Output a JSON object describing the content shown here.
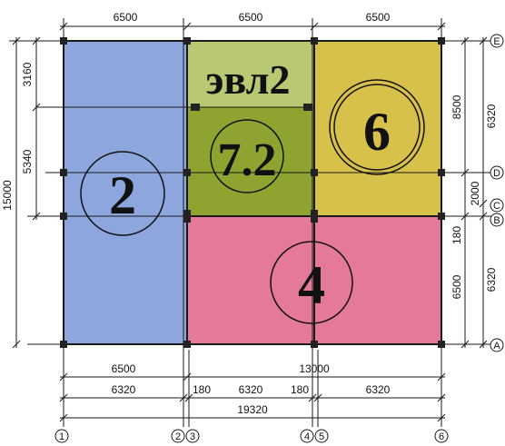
{
  "colors": {
    "zone_blue": "#8EA6DE",
    "zone_pink": "#E47A98",
    "zone_yellow": "#D8C14A",
    "zone_olive_dark": "#8FA430",
    "zone_olive_light": "#B9C873",
    "line": "#1a1a1a"
  },
  "top_dims": [
    "6500",
    "6500",
    "6500"
  ],
  "left_dims": {
    "d3160": "3160",
    "d5340": "5340",
    "d15000": "15000"
  },
  "right_dims": {
    "d8500": "8500",
    "d2000": "2000",
    "d180": "180",
    "d6500": "6500",
    "d6320a": "6320",
    "d6320b": "6320"
  },
  "bottom_dims": {
    "row1": {
      "a": "6500",
      "b": "13000"
    },
    "row2": {
      "a": "6320",
      "b": "180",
      "c": "6320",
      "d": "180",
      "e": "6320"
    },
    "row3": {
      "a": "19320"
    }
  },
  "zones": {
    "z2": "2",
    "z4": "4",
    "z6": "6",
    "z72": "7.2",
    "zevl2": "эвл2"
  },
  "col_axes": [
    "1",
    "2",
    "3",
    "4",
    "5",
    "6"
  ],
  "row_axes": [
    "E",
    "D",
    "C",
    "B",
    "A"
  ]
}
